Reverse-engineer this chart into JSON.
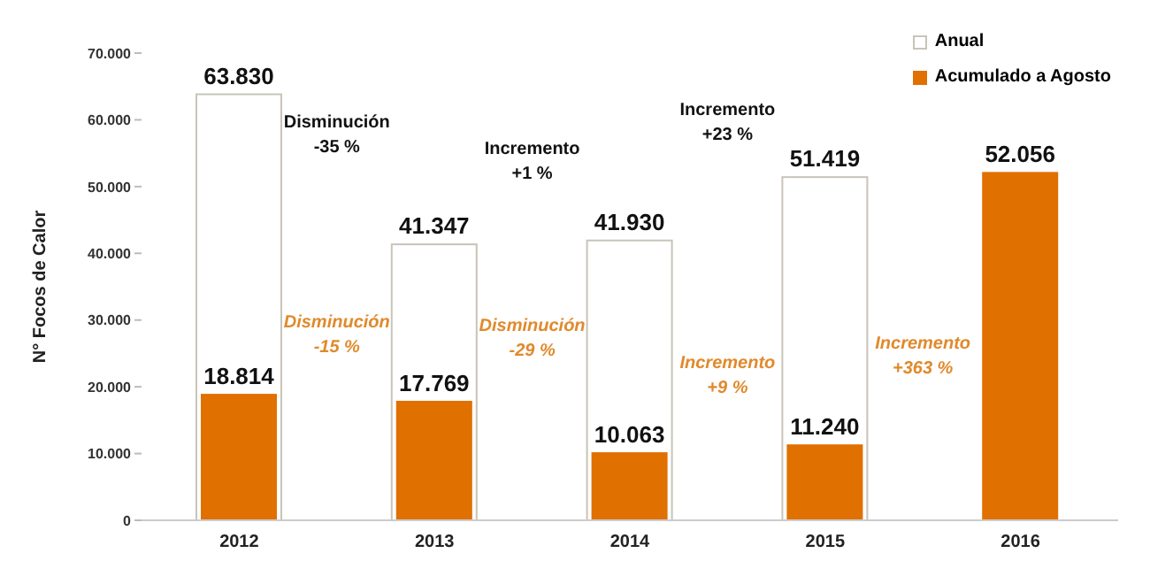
{
  "chart_data": {
    "type": "bar",
    "categories": [
      "2012",
      "2013",
      "2014",
      "2015",
      "2016"
    ],
    "series": [
      {
        "name": "Anual",
        "color": "#c8c4b8",
        "values": [
          63830,
          41347,
          41930,
          51419,
          null
        ],
        "value_labels": [
          "63.830",
          "41.347",
          "41.930",
          "51.419",
          null
        ]
      },
      {
        "name": "Acumulado a Agosto",
        "color": "#e07000",
        "values": [
          18814,
          17769,
          10063,
          11240,
          52056
        ],
        "value_labels": [
          "18.814",
          "17.769",
          "10.063",
          "11.240",
          "52.056"
        ]
      }
    ],
    "ylabel": "N° Focos de Calor",
    "ylim": [
      0,
      70000
    ],
    "yticks": [
      {
        "value": 0,
        "label": "0"
      },
      {
        "value": 10000,
        "label": "10.000"
      },
      {
        "value": 20000,
        "label": "20.000"
      },
      {
        "value": 30000,
        "label": "30.000"
      },
      {
        "value": 40000,
        "label": "40.000"
      },
      {
        "value": 50000,
        "label": "50.000"
      },
      {
        "value": 60000,
        "label": "60.000"
      },
      {
        "value": 70000,
        "label": "70.000"
      }
    ],
    "annotations": [
      "Disminución\n-35 %",
      "Incremento\n+1 %",
      "Incremento\n+23 %",
      "Disminución\n-15 %",
      "Disminución\n-29 %",
      "Incremento\n+9 %",
      "Incremento\n+363 %"
    ],
    "grid": false,
    "legend": "top right"
  }
}
